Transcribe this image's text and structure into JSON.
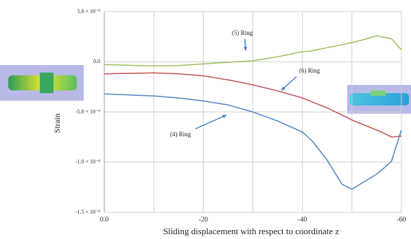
{
  "chart_data": {
    "type": "line",
    "x_label": "Sliding displacement with respect to coordinate z",
    "y_label": "Strain",
    "x": [
      0,
      -5,
      -10,
      -15,
      -20,
      -25,
      -30,
      -35,
      -40,
      -42,
      -45,
      -48,
      -50,
      -53,
      -55,
      -56,
      -58,
      -60
    ],
    "series": [
      {
        "name": "(5) Ring",
        "color": "#9bbb59",
        "values": [
          -2.7e-10,
          -3.5e-10,
          -4e-10,
          -3.8e-10,
          -2e-10,
          -5e-11,
          1e-10,
          5e-10,
          1e-09,
          1.1e-09,
          1.4e-09,
          1.7e-09,
          1.9e-09,
          2.3e-09,
          2.6e-09,
          2.5e-09,
          2.3e-09,
          1.2e-09
        ]
      },
      {
        "name": "(6) Ring",
        "color": "#c0504d",
        "values": [
          -1.2e-09,
          -1.15e-09,
          -1.1e-09,
          -1.2e-09,
          -1.4e-09,
          -1.8e-09,
          -2.3e-09,
          -2.9e-09,
          -3.6e-09,
          -4e-09,
          -4.6e-09,
          -5.3e-09,
          -5.8e-09,
          -6.4e-09,
          -6.8e-09,
          -7e-09,
          -7.5e-09,
          -7.4e-09
        ]
      },
      {
        "name": "(4) Ring",
        "color": "#4f81bd",
        "values": [
          -3.2e-09,
          -3.3e-09,
          -3.4e-09,
          -3.6e-09,
          -3.9e-09,
          -4.3e-09,
          -5e-09,
          -5.9e-09,
          -7e-09,
          -7.9e-09,
          -9.8e-09,
          -1.22e-08,
          -1.27e-08,
          -1.18e-08,
          -1.12e-08,
          -1.08e-08,
          -9.9e-09,
          -6.8e-09
        ]
      }
    ],
    "xlim": [
      0,
      -60
    ],
    "xticks": [
      {
        "value": 0,
        "label": "0.0"
      },
      -20,
      -40,
      -60
    ],
    "xminor": [
      -10,
      -30,
      -50
    ],
    "ylim": [
      -1.5e-08,
      5e-09
    ],
    "yticks": [
      {
        "value": 5e-09,
        "label": "5.0 × 10⁻⁹"
      },
      {
        "value": 0,
        "label": "0.0"
      },
      {
        "value": -5e-09,
        "label": "-5.0 × 10⁻⁹"
      },
      {
        "value": -1e-08,
        "label": "-1.0 × 10⁻⁸"
      },
      {
        "value": -1.5e-08,
        "label": "-1.5 × 10⁻⁸"
      }
    ],
    "grid": true
  }
}
